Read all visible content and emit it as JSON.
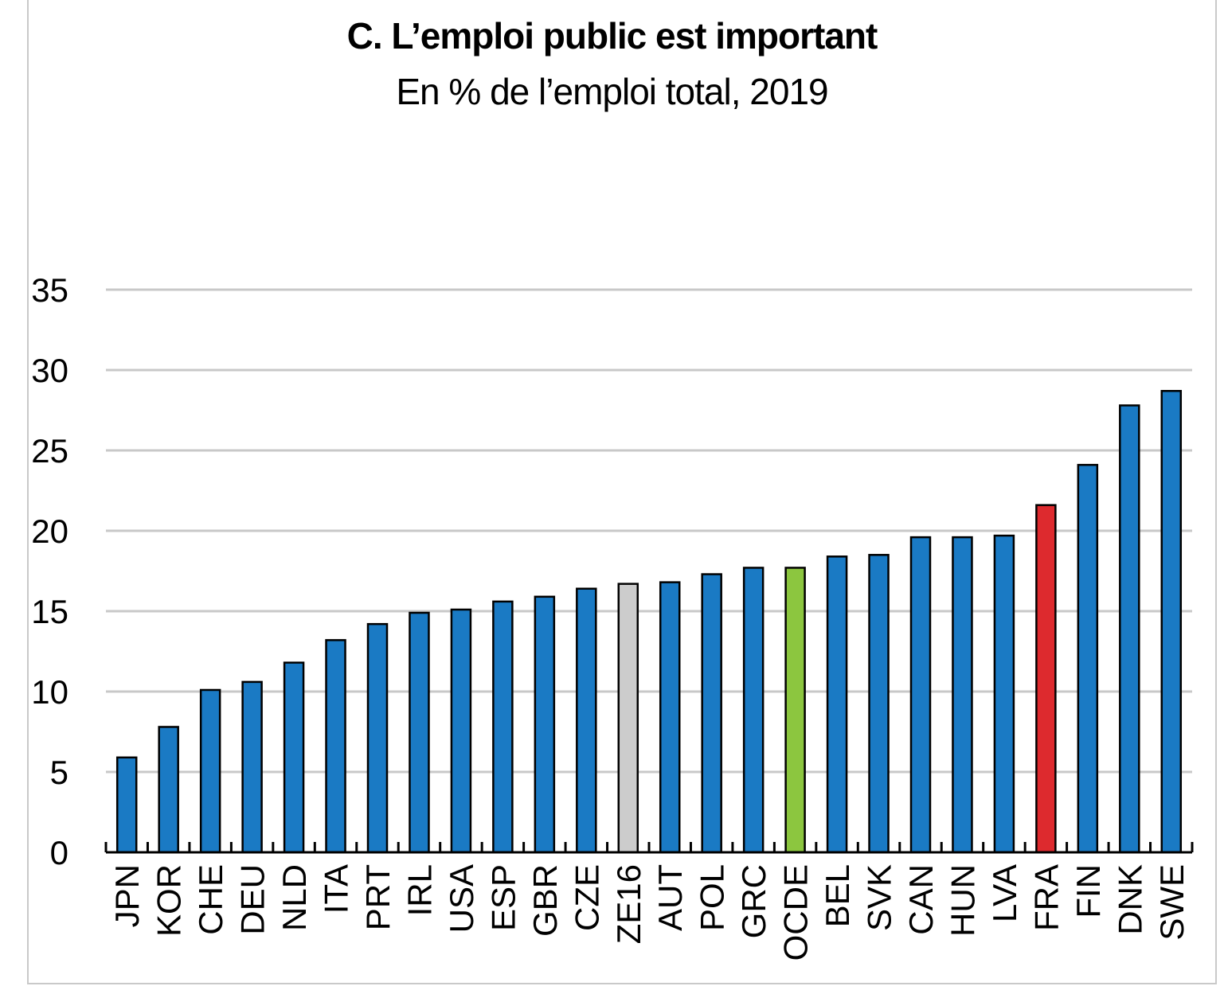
{
  "chart_data": {
    "type": "bar",
    "title": "C. L’emploi public est important",
    "subtitle": "En % de l’emploi total, 2019",
    "xlabel": "",
    "ylabel": "",
    "ylim": [
      0,
      35
    ],
    "yticks": [
      0,
      5,
      10,
      15,
      20,
      25,
      30,
      35
    ],
    "grid": true,
    "categories": [
      "JPN",
      "KOR",
      "CHE",
      "DEU",
      "NLD",
      "ITA",
      "PRT",
      "IRL",
      "USA",
      "ESP",
      "GBR",
      "CZE",
      "ZE16",
      "AUT",
      "POL",
      "GRC",
      "OCDE",
      "BEL",
      "SVK",
      "CAN",
      "HUN",
      "LVA",
      "FRA",
      "FIN",
      "DNK",
      "SWE"
    ],
    "values": [
      5.9,
      7.8,
      10.1,
      10.6,
      11.8,
      13.2,
      14.2,
      14.9,
      15.1,
      15.6,
      15.9,
      16.4,
      16.7,
      16.8,
      17.3,
      17.7,
      17.7,
      18.4,
      18.5,
      19.6,
      19.6,
      19.7,
      21.6,
      24.1,
      27.8,
      28.7
    ],
    "colors": {
      "default": "#1a7ac4",
      "ZE16": "#cccccc",
      "OCDE": "#8cc63f",
      "FRA": "#dd2a2e",
      "grid": "#c8c8c8",
      "axis": "#000000"
    }
  }
}
